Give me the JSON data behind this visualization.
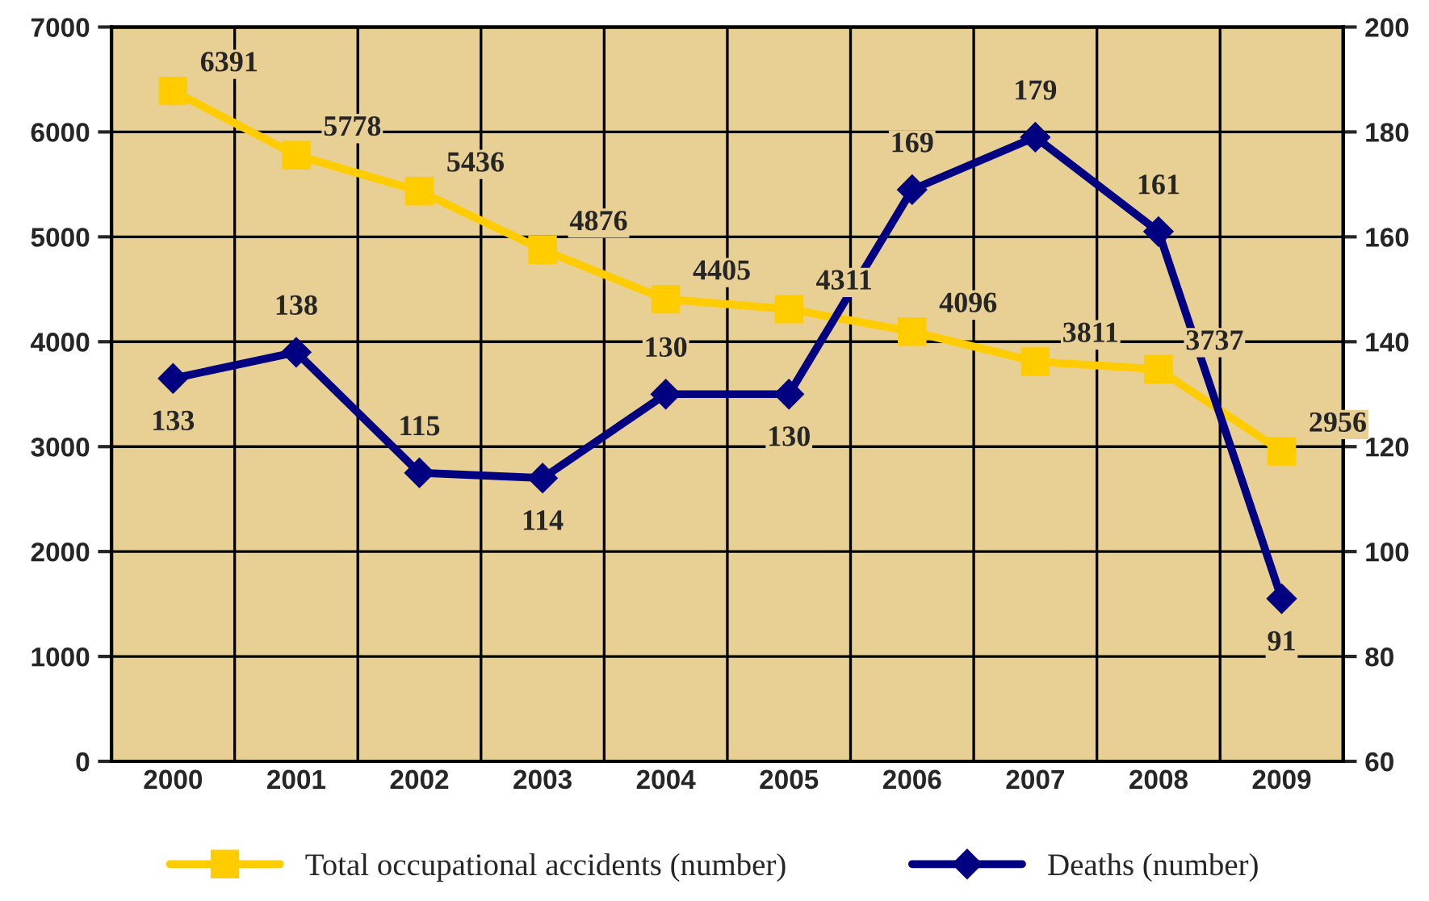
{
  "chart_data": {
    "type": "line",
    "categories": [
      "2000",
      "2001",
      "2002",
      "2003",
      "2004",
      "2005",
      "2006",
      "2007",
      "2008",
      "2009"
    ],
    "series": [
      {
        "name": "Total occupational accidents (number)",
        "color": "#ffcc00",
        "marker": "square",
        "values": [
          6391,
          5778,
          5436,
          4876,
          4405,
          4311,
          4096,
          3811,
          3737,
          2956
        ]
      },
      {
        "name": "Deaths (number)",
        "color": "#000080",
        "marker": "diamond",
        "axis": "y2",
        "values": [
          133,
          138,
          115,
          114,
          130,
          130,
          169,
          179,
          161,
          91
        ]
      }
    ],
    "ylim": [
      0,
      7000
    ],
    "yticks": [
      0,
      1000,
      2000,
      3000,
      4000,
      5000,
      6000,
      7000
    ],
    "y2lim": [
      60,
      200
    ],
    "y2ticks": [
      60,
      80,
      100,
      120,
      140,
      160,
      180,
      200
    ],
    "grid": true,
    "data_labels": true,
    "legend": "bottom",
    "line_style": "solid"
  }
}
